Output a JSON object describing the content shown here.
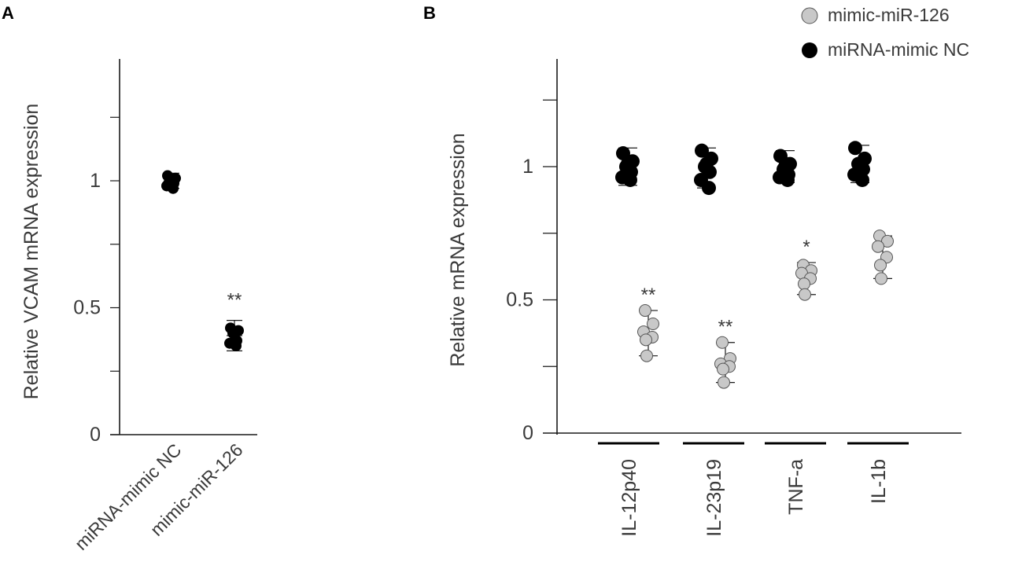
{
  "panels": [
    {
      "letter": "A"
    },
    {
      "letter": "B"
    }
  ],
  "legend": [
    {
      "label": "mimic-miR-126",
      "color": "#c8c8c8"
    },
    {
      "label": "miRNA-mimic NC",
      "color": "#000000"
    }
  ],
  "chart_data": [
    {
      "type": "scatter",
      "panel": "A",
      "ylabel": "Relative VCAM mRNA expression",
      "ylim": [
        0,
        1.25
      ],
      "yticks": [
        0,
        0.25,
        0.5,
        0.75,
        1,
        1.25
      ],
      "ytick_labels": [
        "0",
        "",
        "0.5",
        "",
        "1",
        ""
      ],
      "categories": [
        "miRNA-mimic NC",
        "mimic-miR-126"
      ],
      "series": [
        {
          "category": "miRNA-mimic NC",
          "color": "#000000",
          "points": [
            1.02,
            1.01,
            1.0,
            0.99,
            0.98,
            0.97,
            1.0
          ],
          "mean": 1.0,
          "err": [
            0.97,
            1.03
          ],
          "annotation": ""
        },
        {
          "category": "mimic-miR-126",
          "color": "#000000",
          "points": [
            0.42,
            0.41,
            0.4,
            0.37,
            0.36,
            0.35
          ],
          "mean": 0.39,
          "err": [
            0.33,
            0.45
          ],
          "annotation": "**"
        }
      ]
    },
    {
      "type": "scatter",
      "panel": "B",
      "ylabel": "Relative mRNA expression",
      "ylim": [
        0,
        1.25
      ],
      "yticks": [
        0,
        0.25,
        0.5,
        0.75,
        1,
        1.25
      ],
      "ytick_labels": [
        "0",
        "",
        "0.5",
        "",
        "1",
        ""
      ],
      "categories": [
        "IL-12p40",
        "IL-23p19",
        "TNF-a",
        "IL-1b"
      ],
      "groups": [
        {
          "category": "IL-12p40",
          "nc": {
            "points": [
              1.05,
              1.02,
              1.0,
              0.98,
              0.96,
              0.95,
              1.01
            ],
            "err": [
              0.93,
              1.07
            ]
          },
          "mimic": {
            "points": [
              0.46,
              0.41,
              0.38,
              0.36,
              0.35,
              0.29
            ],
            "err": [
              0.29,
              0.46
            ]
          },
          "annotation": "**"
        },
        {
          "category": "IL-23p19",
          "nc": {
            "points": [
              1.06,
              1.03,
              1.0,
              0.98,
              0.95,
              0.92,
              1.01
            ],
            "err": [
              0.92,
              1.07
            ]
          },
          "mimic": {
            "points": [
              0.34,
              0.28,
              0.26,
              0.25,
              0.24,
              0.19
            ],
            "err": [
              0.19,
              0.34
            ]
          },
          "annotation": "**"
        },
        {
          "category": "TNF-a",
          "nc": {
            "points": [
              1.04,
              1.01,
              0.99,
              0.97,
              0.96,
              0.95,
              1.0
            ],
            "err": [
              0.94,
              1.06
            ]
          },
          "mimic": {
            "points": [
              0.63,
              0.61,
              0.6,
              0.58,
              0.56,
              0.52
            ],
            "err": [
              0.52,
              0.64
            ]
          },
          "annotation": "*"
        },
        {
          "category": "IL-1b",
          "nc": {
            "points": [
              1.07,
              1.03,
              1.01,
              0.99,
              0.97,
              0.95,
              1.0
            ],
            "err": [
              0.94,
              1.08
            ]
          },
          "mimic": {
            "points": [
              0.74,
              0.72,
              0.7,
              0.66,
              0.63,
              0.58
            ],
            "err": [
              0.58,
              0.74
            ]
          },
          "annotation": ""
        }
      ]
    }
  ]
}
